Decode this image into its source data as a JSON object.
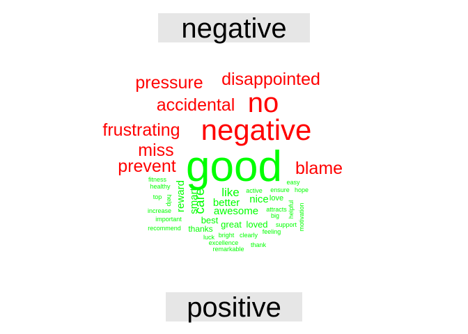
{
  "chart_data": {
    "type": "comparison-wordcloud",
    "groups": [
      {
        "name": "negative",
        "color": "#ff0000"
      },
      {
        "name": "positive",
        "color": "#00ff00"
      }
    ],
    "words": [
      {
        "word": "good",
        "group": "positive",
        "freq": 100
      },
      {
        "word": "negative",
        "group": "negative",
        "freq": 80
      },
      {
        "word": "no",
        "group": "negative",
        "freq": 72
      },
      {
        "word": "disappointed",
        "group": "negative",
        "freq": 45
      },
      {
        "word": "pressure",
        "group": "negative",
        "freq": 45
      },
      {
        "word": "accidental",
        "group": "negative",
        "freq": 45
      },
      {
        "word": "frustrating",
        "group": "negative",
        "freq": 45
      },
      {
        "word": "miss",
        "group": "negative",
        "freq": 45
      },
      {
        "word": "prevent",
        "group": "negative",
        "freq": 45
      },
      {
        "word": "blame",
        "group": "negative",
        "freq": 45
      },
      {
        "word": "care",
        "group": "positive",
        "freq": 28
      },
      {
        "word": "like",
        "group": "positive",
        "freq": 26
      },
      {
        "word": "reward",
        "group": "positive",
        "freq": 25
      },
      {
        "word": "smart",
        "group": "positive",
        "freq": 25
      },
      {
        "word": "nice",
        "group": "positive",
        "freq": 25
      },
      {
        "word": "awesome",
        "group": "positive",
        "freq": 24
      },
      {
        "word": "better",
        "group": "positive",
        "freq": 24
      },
      {
        "word": "great",
        "group": "positive",
        "freq": 22
      },
      {
        "word": "loved",
        "group": "positive",
        "freq": 22
      },
      {
        "word": "best",
        "group": "positive",
        "freq": 22
      },
      {
        "word": "thanks",
        "group": "positive",
        "freq": 22
      },
      {
        "word": "love",
        "group": "positive",
        "freq": 20
      },
      {
        "word": "easy",
        "group": "positive",
        "freq": 17
      },
      {
        "word": "active",
        "group": "positive",
        "freq": 17
      },
      {
        "word": "ensure",
        "group": "positive",
        "freq": 17
      },
      {
        "word": "hope",
        "group": "positive",
        "freq": 17
      },
      {
        "word": "fitness",
        "group": "positive",
        "freq": 17
      },
      {
        "word": "healthy",
        "group": "positive",
        "freq": 17
      },
      {
        "word": "top",
        "group": "positive",
        "freq": 17
      },
      {
        "word": "help",
        "group": "positive",
        "freq": 17
      },
      {
        "word": "increase",
        "group": "positive",
        "freq": 17
      },
      {
        "word": "important",
        "group": "positive",
        "freq": 17
      },
      {
        "word": "recommend",
        "group": "positive",
        "freq": 17
      },
      {
        "word": "attracts",
        "group": "positive",
        "freq": 17
      },
      {
        "word": "big",
        "group": "positive",
        "freq": 17
      },
      {
        "word": "helpful",
        "group": "positive",
        "freq": 17
      },
      {
        "word": "motivation",
        "group": "positive",
        "freq": 17
      },
      {
        "word": "support",
        "group": "positive",
        "freq": 17
      },
      {
        "word": "feeling",
        "group": "positive",
        "freq": 17
      },
      {
        "word": "luck",
        "group": "positive",
        "freq": 17
      },
      {
        "word": "bright",
        "group": "positive",
        "freq": 17
      },
      {
        "word": "clearly",
        "group": "positive",
        "freq": 17
      },
      {
        "word": "excellence",
        "group": "positive",
        "freq": 17
      },
      {
        "word": "thank",
        "group": "positive",
        "freq": 17
      },
      {
        "word": "remarkable",
        "group": "positive",
        "freq": 17
      }
    ]
  }
}
